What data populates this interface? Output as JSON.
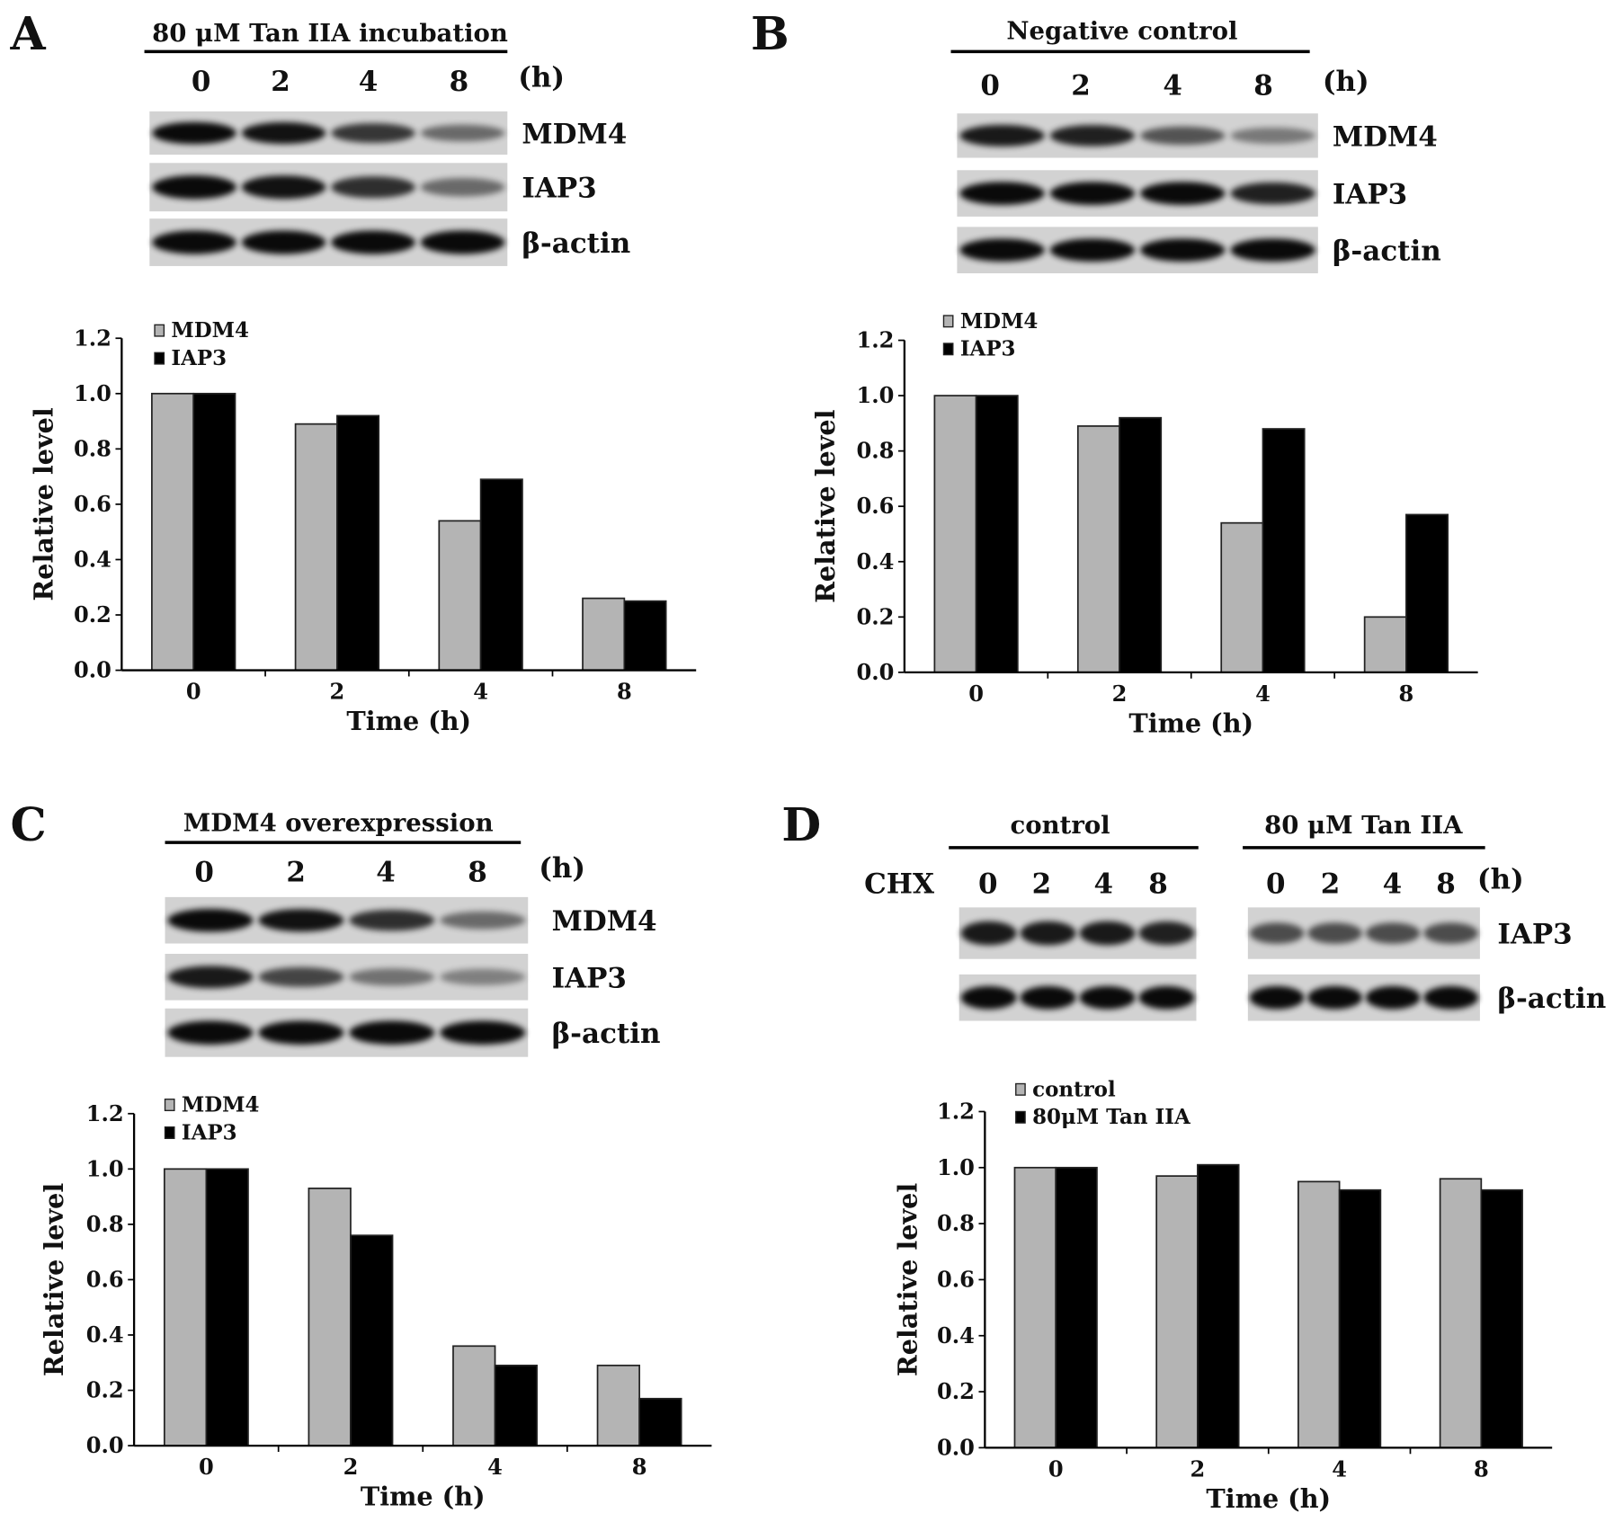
{
  "panels": [
    {
      "letter": "A",
      "headers": [
        "80 μM Tan IIA incubation"
      ],
      "lanes": [
        "0",
        "2",
        "4",
        "8"
      ],
      "unit": "(h)",
      "blots": [
        "MDM4",
        "IAP3",
        "β-actin"
      ]
    },
    {
      "letter": "B",
      "headers": [
        "Negative control"
      ],
      "lanes": [
        "0",
        "2",
        "4",
        "8"
      ],
      "unit": "(h)",
      "blots": [
        "MDM4",
        "IAP3",
        "β-actin"
      ]
    },
    {
      "letter": "C",
      "headers": [
        "MDM4 overexpression"
      ],
      "lanes": [
        "0",
        "2",
        "4",
        "8"
      ],
      "unit": "(h)",
      "blots": [
        "MDM4",
        "IAP3",
        "β-actin"
      ]
    },
    {
      "letter": "D",
      "headers": [
        "control",
        "80 μM Tan IIA"
      ],
      "row_label": "CHX",
      "lanes": [
        "0",
        "2",
        "4",
        "8",
        "0",
        "2",
        "4",
        "8"
      ],
      "unit": "(h)",
      "blots": [
        "IAP3",
        "β-actin"
      ]
    }
  ],
  "colors": {
    "series1": "#b4b4b4",
    "series2": "#000000"
  },
  "chart_data": [
    {
      "type": "bar",
      "categories": [
        "0",
        "2",
        "4",
        "8"
      ],
      "xlabel": "Time (h)",
      "ylabel": "Relative level",
      "ylim": [
        0,
        1.2
      ],
      "yticks": [
        "0.0",
        "0.2",
        "0.4",
        "0.6",
        "0.8",
        "1.0",
        "1.2"
      ],
      "legend": "top-left",
      "series": [
        {
          "name": "MDM4",
          "values": [
            1.0,
            0.89,
            0.54,
            0.26
          ]
        },
        {
          "name": "IAP3",
          "values": [
            1.0,
            0.92,
            0.69,
            0.25
          ]
        }
      ]
    },
    {
      "type": "bar",
      "categories": [
        "0",
        "2",
        "4",
        "8"
      ],
      "xlabel": "Time (h)",
      "ylabel": "Relative level",
      "ylim": [
        0,
        1.2
      ],
      "yticks": [
        "0.0",
        "0.2",
        "0.4",
        "0.6",
        "0.8",
        "1.0",
        "1.2"
      ],
      "legend": "top-left",
      "series": [
        {
          "name": "MDM4",
          "values": [
            1.0,
            0.89,
            0.54,
            0.2
          ]
        },
        {
          "name": "IAP3",
          "values": [
            1.0,
            0.92,
            0.88,
            0.57
          ]
        }
      ]
    },
    {
      "type": "bar",
      "categories": [
        "0",
        "2",
        "4",
        "8"
      ],
      "xlabel": "Time (h)",
      "ylabel": "Relative level",
      "ylim": [
        0,
        1.2
      ],
      "yticks": [
        "0.0",
        "0.2",
        "0.4",
        "0.6",
        "0.8",
        "1.0",
        "1.2"
      ],
      "legend": "top-left",
      "series": [
        {
          "name": "MDM4",
          "values": [
            1.0,
            0.93,
            0.36,
            0.29
          ]
        },
        {
          "name": "IAP3",
          "values": [
            1.0,
            0.76,
            0.29,
            0.17
          ]
        }
      ]
    },
    {
      "type": "bar",
      "categories": [
        "0",
        "2",
        "4",
        "8"
      ],
      "xlabel": "Time (h)",
      "ylabel": "Relative level",
      "ylim": [
        0,
        1.2
      ],
      "yticks": [
        "0.0",
        "0.2",
        "0.4",
        "0.6",
        "0.8",
        "1.0",
        "1.2"
      ],
      "legend": "top-left",
      "series": [
        {
          "name": "control",
          "values": [
            1.0,
            0.97,
            0.95,
            0.96
          ]
        },
        {
          "name": "80μM Tan IIA",
          "values": [
            1.0,
            1.01,
            0.92,
            0.92
          ]
        }
      ]
    }
  ]
}
